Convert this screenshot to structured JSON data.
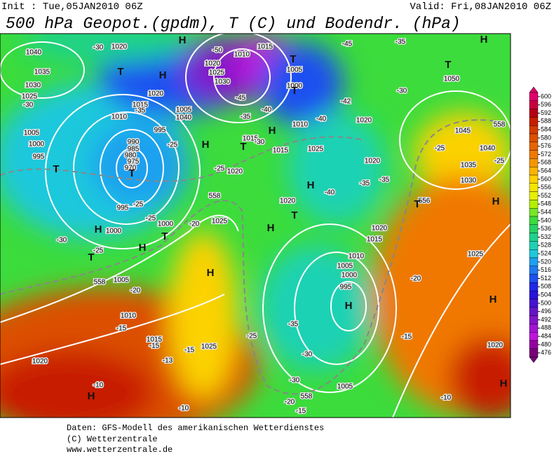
{
  "header": {
    "init": "Init : Tue,05JAN2010 06Z",
    "valid": "Valid: Fri,08JAN2010 06Z",
    "title": "500 hPa Geopot.(gpdm), T (C) und Bodendr. (hPa)"
  },
  "map": {
    "labels": [
      "1040",
      "1035",
      "1030",
      "1025",
      "-30",
      "1020",
      "-30",
      "1010",
      "1015",
      "-35",
      "1020",
      "1005",
      "1040",
      "995",
      "1005",
      "1000",
      "995",
      "990",
      "985",
      "980",
      "975",
      "970",
      "995",
      "-25",
      "-25",
      "1000",
      "1000",
      "-30",
      "-25",
      "1005",
      "-20",
      "1010",
      "-15",
      "1015",
      "-15",
      "-15",
      "1025",
      "-13",
      "1020",
      "-10",
      "-10",
      "-20",
      "1025",
      "558",
      "558",
      "1010",
      "1015",
      "-50",
      "1020",
      "1025",
      "1030",
      "-45",
      "-40",
      "-35",
      "1015",
      "-30",
      "1020",
      "-25",
      "-25",
      "1005",
      "1000",
      "1010",
      "-45",
      "-35",
      "-42",
      "1020",
      "-40",
      "1025",
      "1015",
      "1020",
      "-40",
      "-35",
      "1020",
      "-35",
      "-30",
      "1045",
      "-25",
      "1040",
      "1035",
      "-25",
      "1030",
      "558",
      "1020",
      "1015",
      "1010",
      "1005",
      "1000",
      "995",
      "-35",
      "-30",
      "-25",
      "-30",
      "1005",
      "-20",
      "-15",
      "558",
      "-20",
      "-15",
      "-10",
      "1025",
      "1020",
      "1050",
      "556"
    ],
    "symbols": [
      "H",
      "T",
      "H",
      "T",
      "T",
      "H",
      "T",
      "H",
      "T",
      "H",
      "H",
      "T",
      "H",
      "H",
      "T",
      "H",
      "H",
      "T",
      "H",
      "H",
      "H",
      "H",
      "T",
      "T",
      "T",
      "H"
    ]
  },
  "colorbar": {
    "ticks": [
      600,
      596,
      592,
      588,
      584,
      580,
      576,
      572,
      568,
      564,
      560,
      556,
      552,
      548,
      544,
      540,
      536,
      532,
      528,
      524,
      520,
      516,
      512,
      508,
      504,
      500,
      496,
      492,
      488,
      484,
      480,
      476
    ],
    "colors": [
      "#e0006a",
      "#c8003c",
      "#b40014",
      "#c81e00",
      "#d23c00",
      "#dc5000",
      "#e66400",
      "#f07800",
      "#f59600",
      "#fab400",
      "#fcd200",
      "#f5e600",
      "#e6f000",
      "#b4f000",
      "#78e628",
      "#3cdc3c",
      "#28d264",
      "#1ed28c",
      "#1ed2b4",
      "#1ec8dc",
      "#1ea0f0",
      "#1e78f0",
      "#1e50f0",
      "#1e28e6",
      "#2814dc",
      "#4614d2",
      "#6414c8",
      "#8214c8",
      "#a014d2",
      "#be14dc",
      "#9600a0",
      "#780078"
    ]
  },
  "footer": [
    "Daten: GFS-Modell des amerikanischen Wetterdienstes",
    "(C) Wetterzentrale",
    "www.wetterzentrale.de"
  ]
}
